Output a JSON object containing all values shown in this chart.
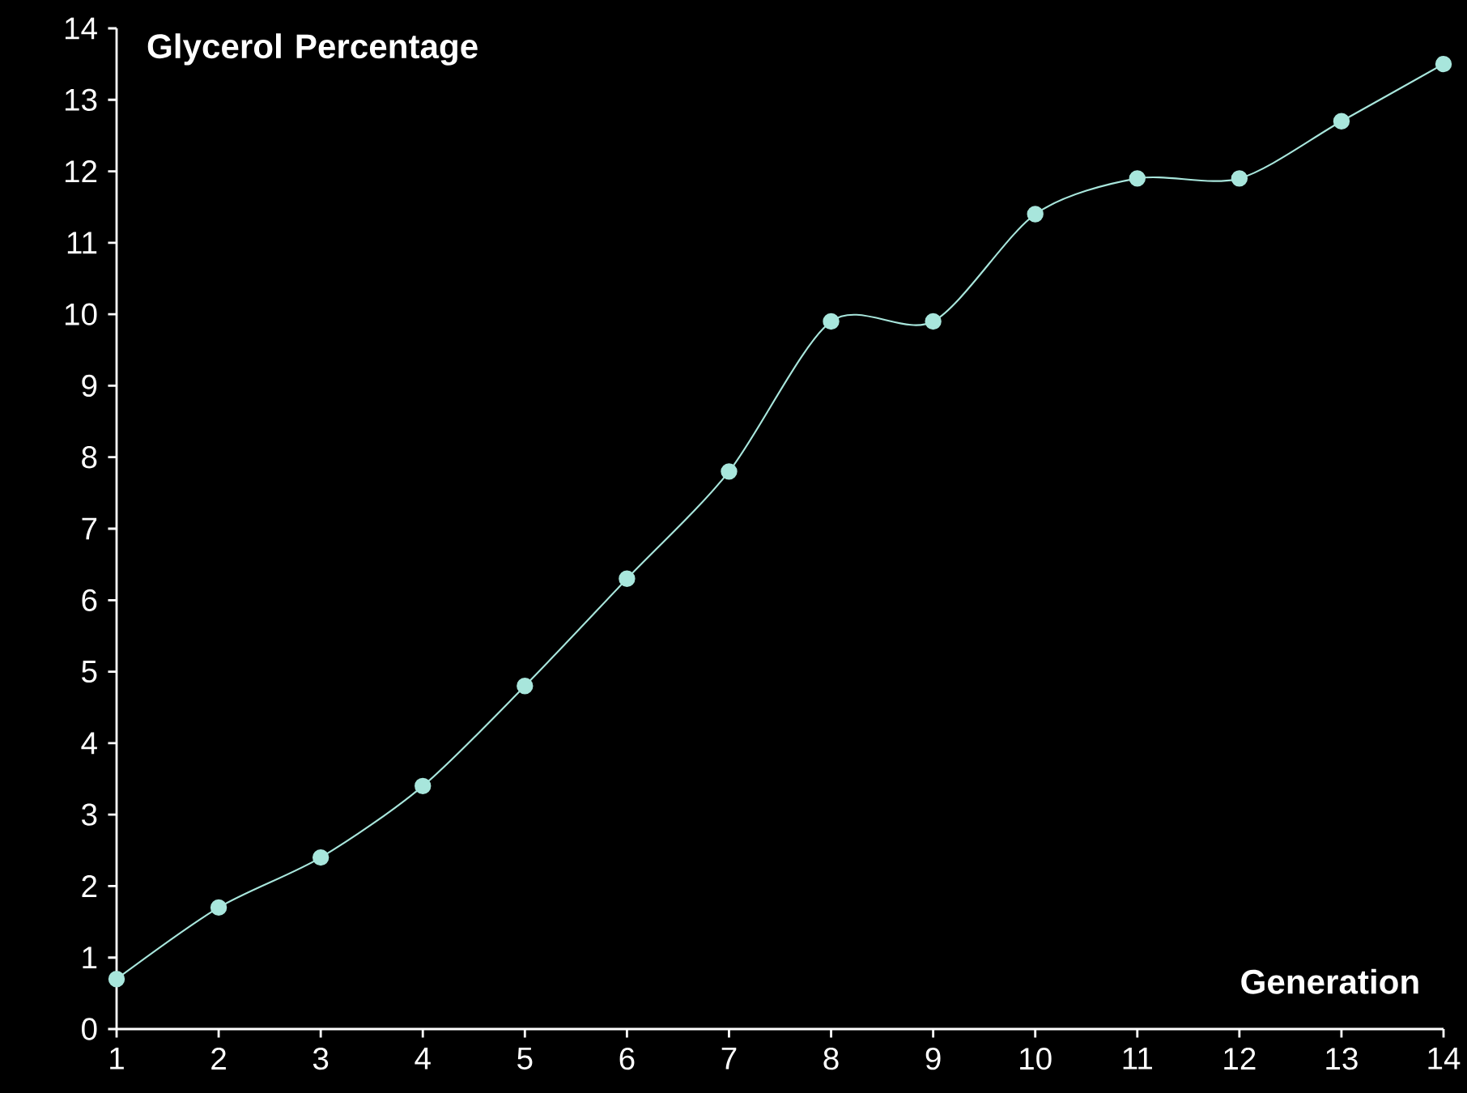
{
  "chart_data": {
    "type": "line",
    "xlabel": "Generation",
    "ylabel": "Glycerol Percentage",
    "x": [
      1,
      2,
      3,
      4,
      5,
      6,
      7,
      8,
      9,
      10,
      11,
      12,
      13,
      14
    ],
    "series": [
      {
        "color": "#a8e6dc",
        "values": [
          0.7,
          1.7,
          2.4,
          3.4,
          4.8,
          6.3,
          7.8,
          9.9,
          9.9,
          11.4,
          11.9,
          11.9,
          12.7,
          13.5
        ]
      }
    ],
    "xlim": [
      1,
      14
    ],
    "xticks": [
      1,
      2,
      3,
      4,
      5,
      6,
      7,
      8,
      9,
      10,
      11,
      12,
      13,
      14
    ],
    "ylim": [
      0,
      14
    ],
    "yticks": [
      0,
      1,
      2,
      3,
      4,
      5,
      6,
      7,
      8,
      9,
      10,
      11,
      12,
      13,
      14
    ],
    "marker": "circle",
    "line_style": "solid"
  }
}
